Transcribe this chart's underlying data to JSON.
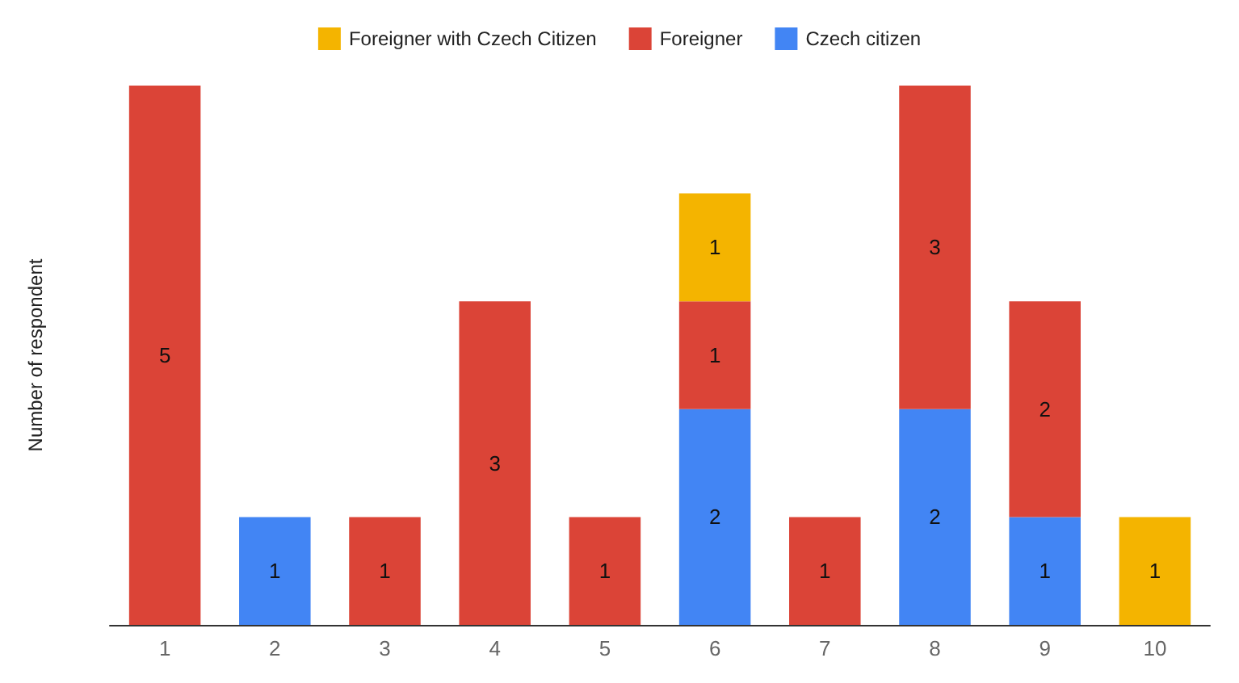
{
  "chart_data": {
    "type": "bar",
    "stacked": true,
    "relative": false,
    "data_labels": true,
    "legend": "top",
    "grid": false,
    "ylabel": "Number of respondent",
    "categories": [
      "1",
      "2",
      "3",
      "4",
      "5",
      "6",
      "7",
      "8",
      "9",
      "10"
    ],
    "series": [
      {
        "name": "Czech citizen",
        "color": "#4285f4",
        "values": [
          null,
          1,
          null,
          null,
          null,
          2,
          null,
          2,
          1,
          null
        ]
      },
      {
        "name": "Foreigner",
        "color": "#db4437",
        "values": [
          5,
          null,
          1,
          3,
          1,
          1,
          1,
          3,
          2,
          null
        ]
      },
      {
        "name": "Foreigner with Czech Citizen",
        "color": "#f4b400",
        "values": [
          null,
          null,
          null,
          null,
          null,
          1,
          null,
          null,
          null,
          1
        ]
      }
    ]
  }
}
